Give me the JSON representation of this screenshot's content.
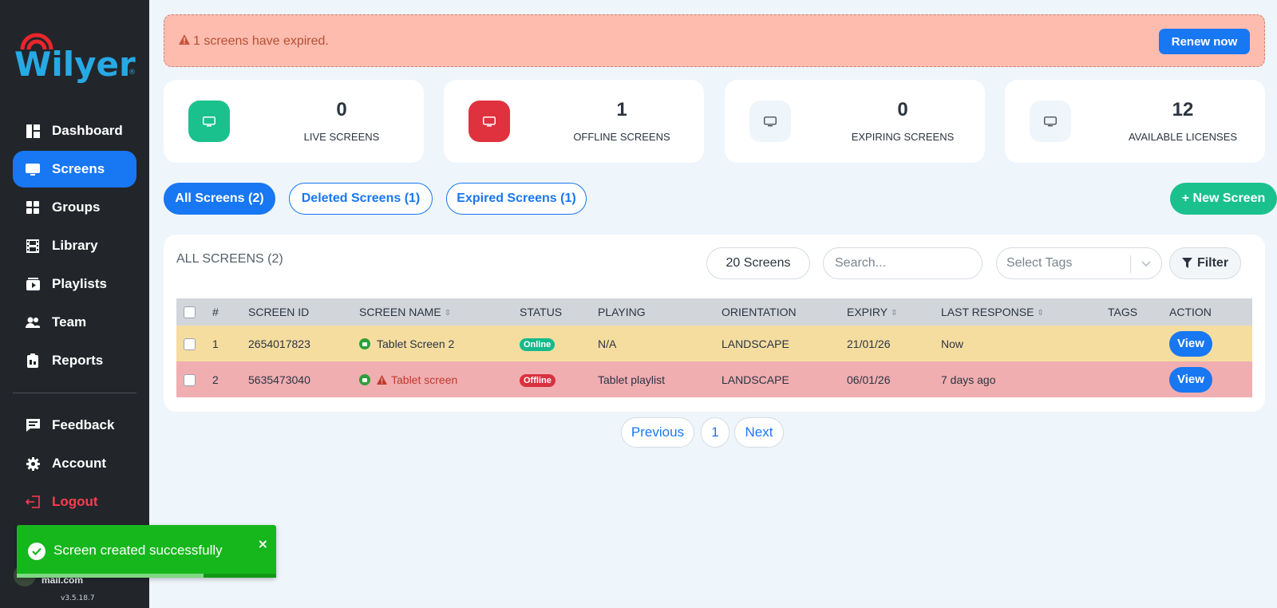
{
  "brand": {
    "name": "Wilyer",
    "registered": "®"
  },
  "sidebar": {
    "items": [
      {
        "label": "Dashboard",
        "icon": "dashboard-icon"
      },
      {
        "label": "Screens",
        "icon": "monitor-icon",
        "active": true
      },
      {
        "label": "Groups",
        "icon": "grid-icon"
      },
      {
        "label": "Library",
        "icon": "film-icon"
      },
      {
        "label": "Playlists",
        "icon": "playlist-icon"
      },
      {
        "label": "Team",
        "icon": "team-icon"
      },
      {
        "label": "Reports",
        "icon": "clipboard-icon"
      }
    ],
    "bottom_items": [
      {
        "label": "Feedback",
        "icon": "feedback-icon"
      },
      {
        "label": "Account",
        "icon": "gear-icon"
      },
      {
        "label": "Logout",
        "icon": "logout-icon"
      }
    ],
    "user_email_fragment": "mail.com",
    "version": "v3.5.18.7"
  },
  "toast": {
    "message": "Screen created successfully",
    "close": "×"
  },
  "alert": {
    "text": "1 screens have expired.",
    "button": "Renew now"
  },
  "stats": [
    {
      "value": "0",
      "label": "LIVE SCREENS",
      "color": "#1bc18d"
    },
    {
      "value": "1",
      "label": "OFFLINE SCREENS",
      "color": "#e0313e"
    },
    {
      "value": "0",
      "label": "EXPIRING SCREENS",
      "color": "#eef5fb"
    },
    {
      "value": "12",
      "label": "AVAILABLE LICENSES",
      "color": "#eef5fb"
    }
  ],
  "tabs": [
    "All Screens (2)",
    "Deleted Screens (1)",
    "Expired Screens (1)"
  ],
  "new_screen_button": "+ New Screen",
  "panel": {
    "title": "ALL SCREENS (2)",
    "page_size": "20 Screens",
    "search_placeholder": "Search...",
    "tags_placeholder": "Select Tags",
    "filter_label": "Filter"
  },
  "table": {
    "headers": [
      "#",
      "SCREEN ID",
      "SCREEN NAME",
      "STATUS",
      "PLAYING",
      "ORIENTATION",
      "EXPIRY",
      "LAST RESPONSE",
      "TAGS",
      "ACTION"
    ],
    "rows": [
      {
        "num": "1",
        "id": "2654017823",
        "name": "Tablet Screen 2",
        "status": "Online",
        "playing": "N/A",
        "orientation": "LANDSCAPE",
        "expiry": "21/01/26",
        "last_response": "Now",
        "tags": "",
        "action": "View"
      },
      {
        "num": "2",
        "id": "5635473040",
        "name": "Tablet screen",
        "status": "Offline",
        "playing": "Tablet playlist",
        "orientation": "LANDSCAPE",
        "expiry": "06/01/26",
        "last_response": "7 days ago",
        "tags": "",
        "action": "View"
      }
    ]
  },
  "pagination": {
    "previous": "Previous",
    "page": "1",
    "next": "Next"
  }
}
